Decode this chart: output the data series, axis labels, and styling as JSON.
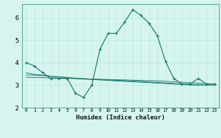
{
  "xlabel": "Humidex (Indice chaleur)",
  "background_color": "#d6f5ef",
  "grid_color": "#c0e8e0",
  "line_color": "#1a7a6e",
  "x_values": [
    0,
    1,
    2,
    3,
    4,
    5,
    6,
    7,
    8,
    9,
    10,
    11,
    12,
    13,
    14,
    15,
    16,
    17,
    18,
    19,
    20,
    21,
    22,
    23
  ],
  "main_line": [
    4.0,
    3.85,
    3.55,
    3.3,
    3.3,
    3.3,
    2.65,
    2.45,
    3.0,
    4.6,
    5.3,
    5.3,
    5.8,
    6.35,
    6.1,
    5.75,
    5.2,
    4.05,
    3.3,
    3.05,
    3.05,
    3.3,
    3.05,
    3.05
  ],
  "flat_lines": [
    [
      3.55,
      3.48,
      3.44,
      3.4,
      3.36,
      3.33,
      3.3,
      3.27,
      3.25,
      3.23,
      3.21,
      3.19,
      3.17,
      3.15,
      3.13,
      3.11,
      3.09,
      3.07,
      3.05,
      3.03,
      3.01,
      3.0,
      3.0,
      3.0
    ],
    [
      3.45,
      3.44,
      3.42,
      3.39,
      3.37,
      3.34,
      3.31,
      3.29,
      3.27,
      3.25,
      3.23,
      3.21,
      3.2,
      3.18,
      3.16,
      3.14,
      3.12,
      3.1,
      3.08,
      3.06,
      3.04,
      3.02,
      3.01,
      3.0
    ],
    [
      3.35,
      3.34,
      3.33,
      3.32,
      3.31,
      3.3,
      3.29,
      3.28,
      3.27,
      3.26,
      3.25,
      3.24,
      3.23,
      3.22,
      3.21,
      3.2,
      3.19,
      3.17,
      3.15,
      3.13,
      3.11,
      3.09,
      3.07,
      3.05
    ]
  ],
  "ylim": [
    2.0,
    6.6
  ],
  "yticks": [
    2,
    3,
    4,
    5,
    6
  ],
  "xtick_labels": [
    "0",
    "1",
    "2",
    "3",
    "4",
    "5",
    "6",
    "7",
    "8",
    "9",
    "10",
    "11",
    "12",
    "13",
    "14",
    "15",
    "16",
    "17",
    "18",
    "19",
    "20",
    "21",
    "22",
    "23"
  ]
}
